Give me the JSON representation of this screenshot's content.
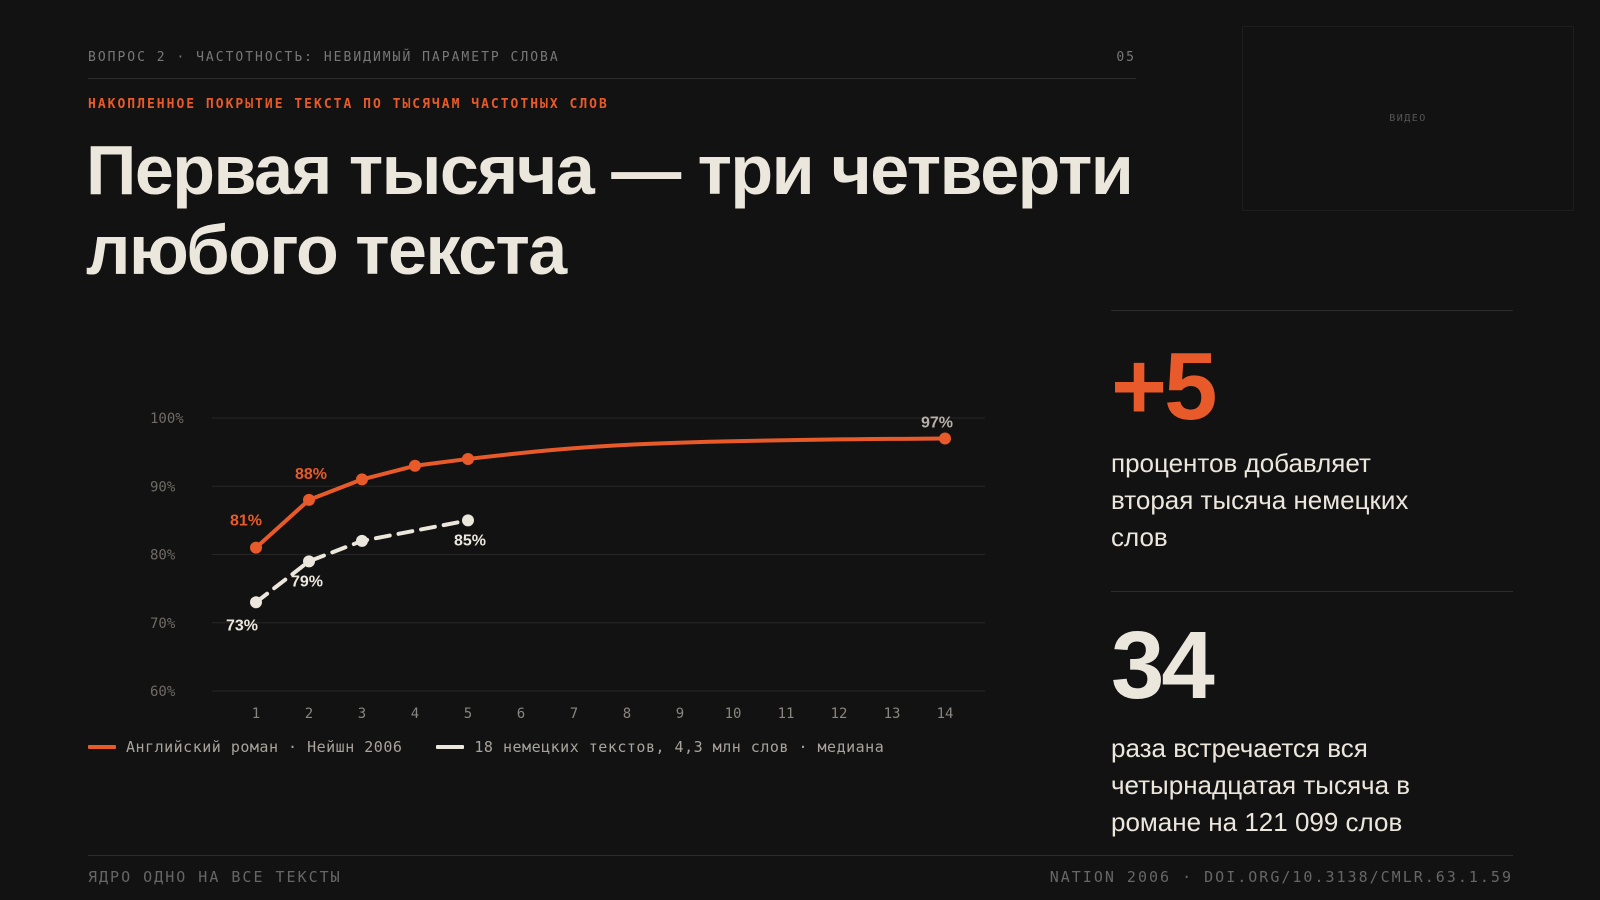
{
  "header": {
    "breadcrumb": "ВОПРОС 2 · ЧАСТОТНОСТЬ: НЕВИДИМЫЙ ПАРАМЕТР СЛОВА",
    "page_number": "05",
    "kicker": "НАКОПЛЕННОЕ ПОКРЫТИЕ ТЕКСТА ПО ТЫСЯЧАМ ЧАСТОТНЫХ СЛОВ",
    "title_line1": "Первая тысяча — три четверти",
    "title_line2": "любого текста"
  },
  "video": {
    "label": "ВИДЕО"
  },
  "chart_data": {
    "type": "line",
    "title": "",
    "xlabel": "",
    "ylabel": "",
    "x_ticks": [
      "1",
      "2",
      "3",
      "4",
      "5",
      "6",
      "7",
      "8",
      "9",
      "10",
      "11",
      "12",
      "13",
      "14"
    ],
    "y_ticks": [
      "60%",
      "70%",
      "80%",
      "90%",
      "100%"
    ],
    "xlim": [
      1,
      14
    ],
    "ylim": [
      60,
      100
    ],
    "grid": true,
    "legend_position": "bottom-left",
    "series": [
      {
        "name": "Английский роман · Нейшн 2006",
        "color": "#e85a2a",
        "style": "solid",
        "x": [
          1,
          2,
          3,
          4,
          5,
          14
        ],
        "y": [
          81,
          88,
          91,
          93,
          94,
          97
        ],
        "labels": [
          "81%",
          "88%",
          "",
          "",
          "",
          "97%"
        ]
      },
      {
        "name": "18 немецких текстов, 4,3 млн слов · медиана",
        "color": "#ece7dd",
        "style": "dashed",
        "x": [
          1,
          2,
          3,
          5
        ],
        "y": [
          73,
          79,
          82,
          85
        ],
        "labels": [
          "73%",
          "79%",
          "",
          "85%"
        ]
      }
    ]
  },
  "stats": [
    {
      "value": "+5",
      "text": "процентов добавляет вторая тысяча немецких слов",
      "color": "#e85a2a"
    },
    {
      "value": "34",
      "text": "раза встречается вся четырнадцатая тысяча в романе на 121 099 слов",
      "color": "#ece7dd"
    }
  ],
  "footer": {
    "left": "ЯДРО ОДНО НА ВСЕ ТЕКСТЫ",
    "right": "NATION 2006 · DOI.ORG/10.3138/CMLR.63.1.59"
  }
}
